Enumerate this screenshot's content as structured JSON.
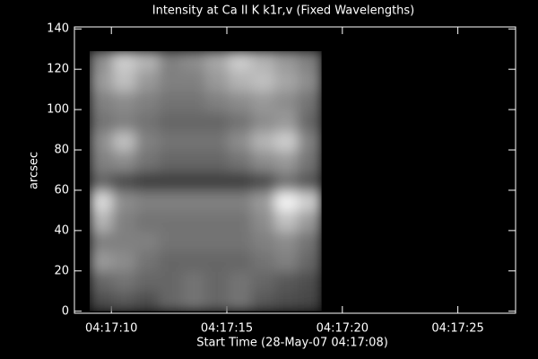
{
  "chart_data": {
    "type": "image",
    "title": "Intensity at Ca II K k1r,v (Fixed Wavelengths)",
    "x_label": "Start Time (28-May-07 04:17:08)",
    "y_label": "arcsec",
    "xlim": [
      8.4,
      27.5
    ],
    "xticks": [
      {
        "value": 10,
        "label": "04:17:10"
      },
      {
        "value": 15,
        "label": "04:17:15"
      },
      {
        "value": 20,
        "label": "04:17:20"
      },
      {
        "value": 25,
        "label": "04:17:25"
      }
    ],
    "ylim": [
      -1,
      141
    ],
    "yticks": [
      0,
      20,
      40,
      60,
      80,
      100,
      120,
      140
    ],
    "image_extent": {
      "x": [
        9.06,
        19.1
      ],
      "y": [
        0,
        129
      ]
    },
    "colormap": "gray",
    "zlim": [
      0,
      100
    ],
    "z": [
      [
        30,
        35,
        30,
        40,
        45,
        40,
        45,
        35,
        30,
        28
      ],
      [
        40,
        45,
        40,
        40,
        45,
        40,
        45,
        40,
        35,
        30
      ],
      [
        60,
        55,
        45,
        40,
        40,
        40,
        40,
        45,
        50,
        40
      ],
      [
        50,
        50,
        50,
        45,
        45,
        45,
        45,
        50,
        55,
        45
      ],
      [
        70,
        50,
        45,
        45,
        45,
        45,
        45,
        55,
        75,
        60
      ],
      [
        85,
        55,
        50,
        50,
        50,
        50,
        50,
        60,
        95,
        80
      ],
      [
        40,
        30,
        25,
        25,
        25,
        25,
        25,
        30,
        45,
        35
      ],
      [
        50,
        55,
        45,
        40,
        40,
        40,
        45,
        55,
        60,
        45
      ],
      [
        55,
        75,
        50,
        45,
        45,
        45,
        55,
        70,
        80,
        50
      ],
      [
        45,
        50,
        45,
        40,
        40,
        40,
        45,
        55,
        60,
        40
      ],
      [
        50,
        55,
        50,
        45,
        45,
        50,
        55,
        60,
        55,
        45
      ],
      [
        60,
        75,
        60,
        50,
        50,
        60,
        70,
        75,
        65,
        55
      ],
      [
        55,
        80,
        70,
        50,
        55,
        65,
        80,
        70,
        60,
        50
      ]
    ]
  }
}
